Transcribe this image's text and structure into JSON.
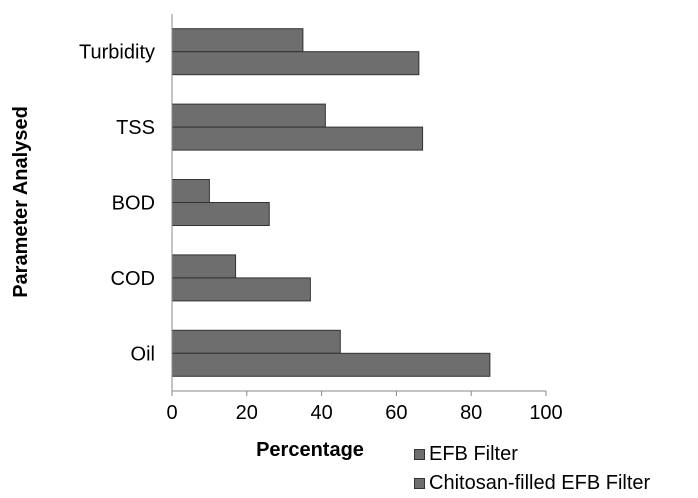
{
  "chart_data": {
    "type": "bar",
    "orientation": "horizontal",
    "categories": [
      "Turbidity",
      "TSS",
      "BOD",
      "COD",
      "Oil"
    ],
    "series": [
      {
        "name": "EFB Filter",
        "values": [
          35,
          41,
          10,
          17,
          45
        ],
        "color": "#6e6e6e"
      },
      {
        "name": "Chitosan-filled EFB Filter",
        "values": [
          66,
          67,
          26,
          37,
          85
        ],
        "color": "#6e6e6e"
      }
    ],
    "xlabel": "Percentage",
    "ylabel": "Parameter Analysed",
    "xlim": [
      0,
      100
    ],
    "xticks": [
      "0",
      "20",
      "40",
      "60",
      "80",
      "100"
    ],
    "grid": false,
    "legend_position": "bottom-right"
  }
}
